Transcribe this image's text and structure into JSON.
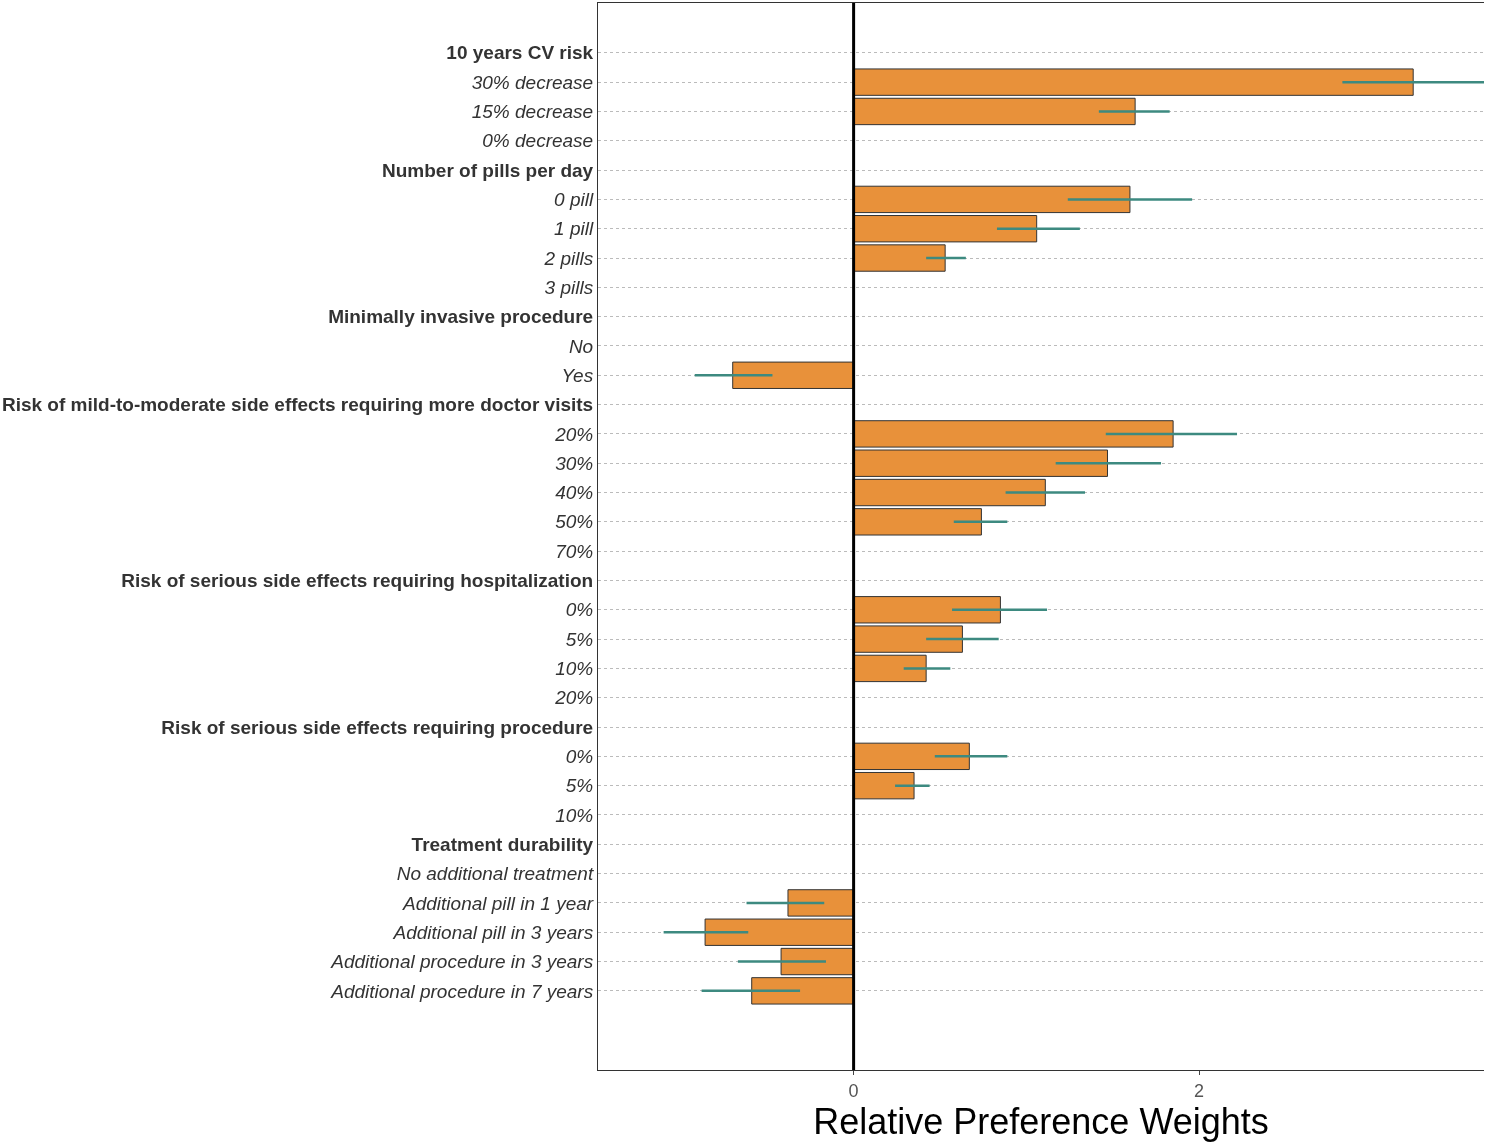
{
  "chart_data": {
    "type": "bar",
    "orientation": "horizontal",
    "xlabel": "Relative Preference Weights",
    "categories": [
      "10 years CV risk",
      "30% decrease",
      "15% decrease",
      "0% decrease",
      "Number of pills per day",
      "0 pill",
      "1 pill",
      "2 pills",
      "3 pills",
      "Minimally invasive procedure",
      "No",
      "Yes",
      "Risk of mild-to-moderate side effects requiring more doctor visits",
      "20%",
      "30%",
      "40%",
      "50%",
      "70%",
      "Risk of serious side effects requiring hospitalization",
      "0%",
      "5%",
      "10%",
      "20%",
      "Risk of serious side effects requiring procedure",
      "0%",
      "5%",
      "10%",
      "Treatment durability",
      "No additional treatment",
      "Additional pill in 1 year",
      "Additional pill in 3 years",
      "Additional procedure in 3 years",
      "Additional procedure in 7 years"
    ],
    "values": [
      null,
      3.24,
      1.63,
      0,
      null,
      1.6,
      1.06,
      0.53,
      0,
      null,
      0,
      -0.7,
      null,
      1.85,
      1.47,
      1.11,
      0.74,
      0,
      null,
      0.85,
      0.63,
      0.42,
      0,
      null,
      0.67,
      0.35,
      0,
      null,
      0,
      -0.38,
      -0.86,
      -0.42,
      -0.59
    ],
    "errors": [
      null,
      [
        2.83,
        3.65
      ],
      [
        1.42,
        1.83
      ],
      null,
      null,
      [
        1.24,
        1.96
      ],
      [
        0.83,
        1.31
      ],
      [
        0.42,
        0.65
      ],
      null,
      null,
      null,
      [
        -0.92,
        -0.47
      ],
      null,
      [
        1.46,
        2.22
      ],
      [
        1.17,
        1.78
      ],
      [
        0.88,
        1.34
      ],
      [
        0.58,
        0.89
      ],
      null,
      null,
      [
        0.57,
        1.12
      ],
      [
        0.42,
        0.84
      ],
      [
        0.29,
        0.56
      ],
      null,
      null,
      [
        0.47,
        0.89
      ],
      [
        0.24,
        0.44
      ],
      null,
      null,
      null,
      [
        -0.62,
        -0.17
      ],
      [
        -1.1,
        -0.61
      ],
      [
        -0.67,
        -0.16
      ],
      [
        -0.88,
        -0.31
      ]
    ],
    "color": "#e8913a",
    "xlim": [
      -1.48,
      3.65
    ],
    "xticks": [
      0,
      2
    ],
    "grid": "y",
    "ref_lines": [
      {
        "axis": "x",
        "value": 0,
        "color": "#000000"
      }
    ]
  }
}
